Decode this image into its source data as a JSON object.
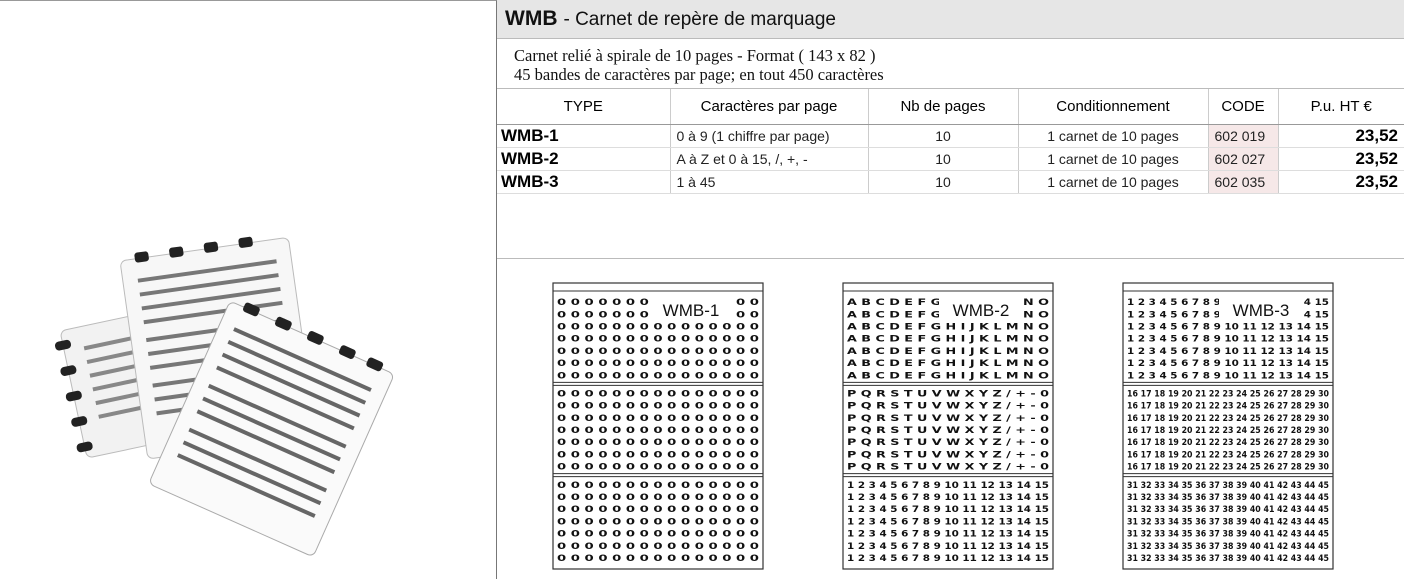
{
  "header": {
    "code": "WMB",
    "title": "- Carnet de repère de marquage"
  },
  "description": [
    "Carnet relié à spirale de 10 pages - Format ( 143 x 82 )",
    "45 bandes de caractères par page; en tout 450 caractères"
  ],
  "table": {
    "columns": [
      "TYPE",
      "Caractères par page",
      "Nb de pages",
      "Conditionnement",
      "CODE",
      "P.u. HT €"
    ],
    "rows": [
      [
        "WMB-1",
        "0 à 9 (1 chiffre par page)",
        "10",
        "1 carnet de 10 pages",
        "602 019",
        "23,52"
      ],
      [
        "WMB-2",
        "A à Z et 0 à 15, /, +, -",
        "10",
        "1 carnet de 10 pages",
        "602 027",
        "23,52"
      ],
      [
        "WMB-3",
        "1 à 45",
        "10",
        "1 carnet de 10 pages",
        "602 035",
        "23,52"
      ]
    ]
  },
  "illustrations": [
    {
      "label": "WMB-1",
      "sections": [
        [
          "0 0 0 0 0 0 0 0 0 0 0 0 0 0 0",
          "0 0 0 0 0 0 0 0 0 0 0 0 0 0 0",
          "0 0 0 0 0 0 0 0 0 0 0 0 0 0 0",
          "0 0 0 0 0 0 0 0 0 0 0 0 0 0 0",
          "0 0 0 0 0 0 0 0 0 0 0 0 0 0 0",
          "0 0 0 0 0 0 0 0 0 0 0 0 0 0 0",
          "0 0 0 0 0 0 0 0 0 0 0 0 0 0 0"
        ],
        [
          "0 0 0 0 0 0 0 0 0 0 0 0 0 0 0",
          "0 0 0 0 0 0 0 0 0 0 0 0 0 0 0",
          "0 0 0 0 0 0 0 0 0 0 0 0 0 0 0",
          "0 0 0 0 0 0 0 0 0 0 0 0 0 0 0",
          "0 0 0 0 0 0 0 0 0 0 0 0 0 0 0",
          "0 0 0 0 0 0 0 0 0 0 0 0 0 0 0",
          "0 0 0 0 0 0 0 0 0 0 0 0 0 0 0"
        ],
        [
          "0 0 0 0 0 0 0 0 0 0 0 0 0 0 0",
          "0 0 0 0 0 0 0 0 0 0 0 0 0 0 0",
          "0 0 0 0 0 0 0 0 0 0 0 0 0 0 0",
          "0 0 0 0 0 0 0 0 0 0 0 0 0 0 0",
          "0 0 0 0 0 0 0 0 0 0 0 0 0 0 0",
          "0 0 0 0 0 0 0 0 0 0 0 0 0 0 0",
          "0 0 0 0 0 0 0 0 0 0 0 0 0 0 0"
        ]
      ]
    },
    {
      "label": "WMB-2",
      "sections": [
        [
          "A B C D E F G H I J K L M N O",
          "A B C D E F G H I J K L M N O",
          "A B C D E F G H I J K L M N O",
          "A B C D E F G H I J K L M N O",
          "A B C D E F G H I J K L M N O",
          "A B C D E F G H I J K L M N O",
          "A B C D E F G H I J K L M N O"
        ],
        [
          "P Q R S T U V W X Y Z / + - 0",
          "P Q R S T U V W X Y Z / + - 0",
          "P Q R S T U V W X Y Z / + - 0",
          "P Q R S T U V W X Y Z / + - 0",
          "P Q R S T U V W X Y Z / + - 0",
          "P Q R S T U V W X Y Z / + - 0",
          "P Q R S T U V W X Y Z / + - 0"
        ],
        [
          "1 2 3 4 5 6 7 8 9 10 11 12 13 14 15",
          "1 2 3 4 5 6 7 8 9 10 11 12 13 14 15",
          "1 2 3 4 5 6 7 8 9 10 11 12 13 14 15",
          "1 2 3 4 5 6 7 8 9 10 11 12 13 14 15",
          "1 2 3 4 5 6 7 8 9 10 11 12 13 14 15",
          "1 2 3 4 5 6 7 8 9 10 11 12 13 14 15",
          "1 2 3 4 5 6 7 8 9 10 11 12 13 14 15"
        ]
      ]
    },
    {
      "label": "WMB-3",
      "sections": [
        [
          "1 2 3 4 5 6 7 8 9 10 11 12 13 14 15",
          "1 2 3 4 5 6 7 8 9 10 11 12 13 14 15",
          "1 2 3 4 5 6 7 8 9 10 11 12 13 14 15",
          "1 2 3 4 5 6 7 8 9 10 11 12 13 14 15",
          "1 2 3 4 5 6 7 8 9 10 11 12 13 14 15",
          "1 2 3 4 5 6 7 8 9 10 11 12 13 14 15",
          "1 2 3 4 5 6 7 8 9 10 11 12 13 14 15"
        ],
        [
          "16 17 18 19 20 21 22 23 24 25 26 27 28 29 30",
          "16 17 18 19 20 21 22 23 24 25 26 27 28 29 30",
          "16 17 18 19 20 21 22 23 24 25 26 27 28 29 30",
          "16 17 18 19 20 21 22 23 24 25 26 27 28 29 30",
          "16 17 18 19 20 21 22 23 24 25 26 27 28 29 30",
          "16 17 18 19 20 21 22 23 24 25 26 27 28 29 30",
          "16 17 18 19 20 21 22 23 24 25 26 27 28 29 30"
        ],
        [
          "31 32 33 34 35 36 37 38 39 40 41 42 43 44 45",
          "31 32 33 34 35 36 37 38 39 40 41 42 43 44 45",
          "31 32 33 34 35 36 37 38 39 40 41 42 43 44 45",
          "31 32 33 34 35 36 37 38 39 40 41 42 43 44 45",
          "31 32 33 34 35 36 37 38 39 40 41 42 43 44 45",
          "31 32 33 34 35 36 37 38 39 40 41 42 43 44 45",
          "31 32 33 34 35 36 37 38 39 40 41 42 43 44 45"
        ]
      ]
    }
  ]
}
